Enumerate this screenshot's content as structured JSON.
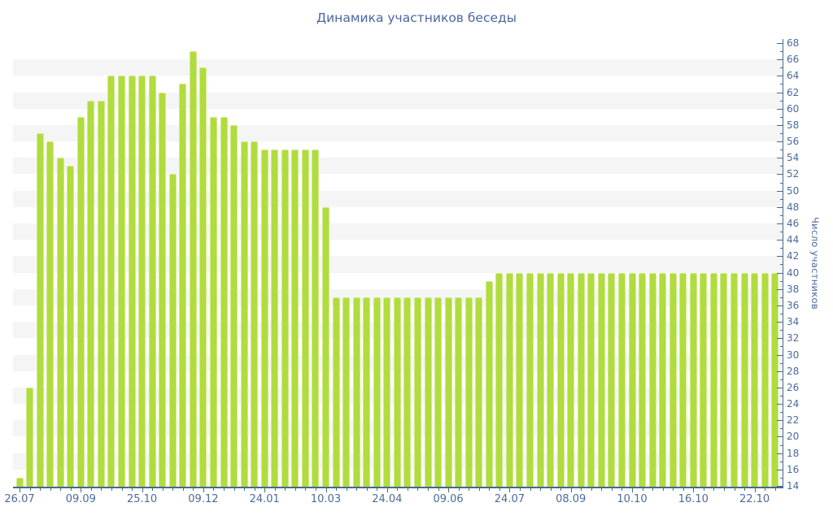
{
  "title": "Динамика участников беседы",
  "colors": {
    "bar_fill": "#b1dc3e",
    "bar_border": "#d0ea8c",
    "axis_line": "#46688e",
    "label_text": "#4a6b9c",
    "title_text": "#4a67a0",
    "stripe_band": "#f5f5f5",
    "background": "#ffffff"
  },
  "chart_data": {
    "type": "bar",
    "title": "Динамика участников беседы",
    "xlabel": "",
    "ylabel": "Число участников",
    "ylim": [
      14,
      68
    ],
    "y_tick_step": 2,
    "grid": "horizontal gray stripe bands, 2 units tall, on ranges 16-18, 20-22, ... 64-66",
    "legend_position": "none",
    "x_tick_labels": [
      "26.07",
      "09.09",
      "25.10",
      "09.12",
      "24.01",
      "10.03",
      "24.04",
      "09.06",
      "24.07",
      "08.09",
      "10.10",
      "16.10",
      "22.10"
    ],
    "x_tick_bar_indices": [
      0,
      6,
      12,
      18,
      24,
      30,
      36,
      42,
      48,
      54,
      60,
      66,
      72
    ],
    "bar_count": 75,
    "values": [
      15,
      26,
      57,
      56,
      54,
      53,
      59,
      61,
      61,
      64,
      64,
      64,
      64,
      64,
      62,
      52,
      63,
      67,
      65,
      59,
      59,
      58,
      56,
      56,
      55,
      55,
      55,
      55,
      55,
      55,
      48,
      37,
      37,
      37,
      37,
      37,
      37,
      37,
      37,
      37,
      37,
      37,
      37,
      37,
      37,
      37,
      39,
      40,
      40,
      40,
      40,
      40,
      40,
      40,
      40,
      40,
      40,
      40,
      40,
      40,
      40,
      40,
      40,
      40,
      40,
      40,
      40,
      40,
      40,
      40,
      40,
      40,
      40,
      40,
      40
    ]
  }
}
